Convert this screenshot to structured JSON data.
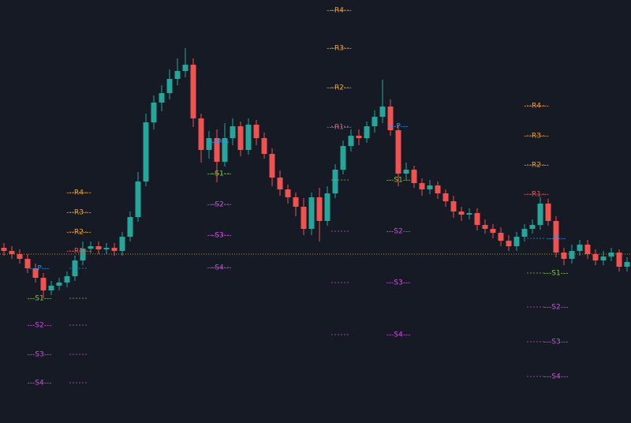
{
  "chart_data": {
    "type": "candlestick",
    "ylim": [
      0,
      536
    ],
    "up_color": "#26a69a",
    "down_color": "#ef5350",
    "price_line": 214,
    "price_line_color": "#f7a21b",
    "open": [
      222,
      218,
      214,
      208,
      196,
      184,
      168,
      174,
      178,
      186,
      206,
      221,
      224,
      220,
      222,
      218,
      236,
      261,
      306,
      381,
      406,
      418,
      436,
      446,
      454,
      386,
      346,
      361,
      331,
      361,
      376,
      346,
      378,
      361,
      341,
      311,
      296,
      286,
      274,
      246,
      286,
      256,
      291,
      321,
      351,
      364,
      361,
      376,
      388,
      401,
      371,
      316,
      321,
      304,
      296,
      301,
      291,
      281,
      268,
      264,
      266,
      251,
      246,
      241,
      231,
      224,
      236,
      246,
      251,
      278,
      256,
      216,
      208,
      218,
      226,
      214,
      206,
      211,
      216,
      198
    ],
    "high": [
      228,
      224,
      220,
      214,
      202,
      190,
      180,
      184,
      192,
      212,
      230,
      230,
      230,
      228,
      228,
      242,
      268,
      318,
      392,
      415,
      428,
      448,
      462,
      475,
      462,
      392,
      370,
      372,
      380,
      386,
      382,
      386,
      384,
      368,
      348,
      320,
      302,
      292,
      285,
      292,
      298,
      300,
      328,
      358,
      372,
      372,
      382,
      396,
      435,
      410,
      378,
      330,
      326,
      310,
      308,
      306,
      296,
      288,
      274,
      272,
      272,
      258,
      252,
      248,
      238,
      242,
      252,
      258,
      286,
      284,
      262,
      222,
      226,
      232,
      232,
      220,
      218,
      222,
      220,
      210
    ],
    "low": [
      212,
      208,
      202,
      190,
      178,
      158,
      162,
      168,
      172,
      180,
      200,
      215,
      214,
      214,
      212,
      212,
      230,
      255,
      300,
      372,
      395,
      410,
      428,
      438,
      375,
      330,
      335,
      305,
      325,
      352,
      338,
      340,
      352,
      335,
      300,
      288,
      278,
      262,
      238,
      238,
      230,
      250,
      285,
      315,
      344,
      352,
      355,
      368,
      380,
      364,
      300,
      308,
      298,
      288,
      290,
      284,
      274,
      260,
      256,
      258,
      244,
      240,
      234,
      224,
      218,
      218,
      230,
      240,
      245,
      250,
      210,
      200,
      202,
      212,
      208,
      200,
      200,
      205,
      192,
      192
    ],
    "close": [
      218,
      214,
      208,
      196,
      184,
      168,
      174,
      178,
      186,
      206,
      221,
      224,
      220,
      222,
      218,
      236,
      261,
      306,
      381,
      406,
      418,
      436,
      446,
      454,
      386,
      346,
      361,
      331,
      361,
      376,
      346,
      378,
      361,
      341,
      311,
      296,
      286,
      274,
      246,
      286,
      256,
      291,
      321,
      351,
      364,
      361,
      376,
      388,
      401,
      371,
      316,
      321,
      304,
      296,
      301,
      291,
      281,
      268,
      264,
      266,
      251,
      246,
      241,
      231,
      224,
      236,
      246,
      251,
      278,
      256,
      216,
      208,
      218,
      226,
      214,
      206,
      211,
      216,
      198,
      204
    ],
    "pivots": [
      {
        "resistance": [
          {
            "label": "---R4---",
            "value": 292,
            "color": "#f7a21b"
          },
          {
            "label": "---R3---",
            "value": 267,
            "color": "#f7a21b"
          },
          {
            "label": "---R2---",
            "value": 242,
            "color": "#f7a21b"
          },
          {
            "label": "---R1---",
            "value": 218,
            "color": "#ef5350"
          }
        ],
        "pivot_support": [
          {
            "label": "---P---",
            "value": 196,
            "color": "#2196f3"
          },
          {
            "label": "---S1---",
            "value": 158,
            "color": "#8bc34a"
          },
          {
            "label": "---S2---",
            "value": 124,
            "color": "#d54ce8"
          },
          {
            "label": "---S3---",
            "value": 87,
            "color": "#d54ce8"
          },
          {
            "label": "---S4---",
            "value": 51,
            "color": "#d54ce8"
          }
        ]
      },
      {
        "resistance": [],
        "pivot_support": [
          {
            "label": "---P---",
            "value": 356,
            "color": "#2196f3"
          },
          {
            "label": "---S1---",
            "value": 316,
            "color": "#8bc34a"
          },
          {
            "label": "---S2---",
            "value": 277,
            "color": "#d54ce8"
          },
          {
            "label": "---S3---",
            "value": 238,
            "color": "#d54ce8"
          },
          {
            "label": "---S4---",
            "value": 197,
            "color": "#d54ce8"
          }
        ]
      },
      {
        "resistance": [
          {
            "label": "---R4---",
            "value": 523,
            "color": "#f7a21b"
          },
          {
            "label": "---R3---",
            "value": 475,
            "color": "#f7a21b"
          },
          {
            "label": "---R2---",
            "value": 425,
            "color": "#f7a21b"
          },
          {
            "label": "---R1---",
            "value": 375,
            "color": "#ef5350"
          }
        ],
        "pivot_support": [
          {
            "label": "---P---",
            "value": 376,
            "color": "#2196f3"
          },
          {
            "label": "---S1---",
            "value": 308,
            "color": "#8bc34a"
          },
          {
            "label": "---S2---",
            "value": 243,
            "color": "#d54ce8"
          },
          {
            "label": "---S3---",
            "value": 178,
            "color": "#d54ce8"
          },
          {
            "label": "---S4---",
            "value": 112,
            "color": "#d54ce8"
          }
        ]
      },
      {
        "resistance": [
          {
            "label": "---R4---",
            "value": 402,
            "color": "#f7a21b"
          },
          {
            "label": "---R3---",
            "value": 364,
            "color": "#f7a21b"
          },
          {
            "label": "---R2---",
            "value": 327,
            "color": "#f7a21b"
          },
          {
            "label": "---R1---",
            "value": 290,
            "color": "#ef5350"
          }
        ],
        "pivot_support": [
          {
            "label": "---P---",
            "value": 234,
            "color": "#2196f3"
          },
          {
            "label": "---S1---",
            "value": 190,
            "color": "#8bc34a"
          },
          {
            "label": "---S2---",
            "value": 147,
            "color": "#d54ce8"
          },
          {
            "label": "---S3---",
            "value": 103,
            "color": "#d54ce8"
          },
          {
            "label": "---S4---",
            "value": 59,
            "color": "#d54ce8"
          }
        ]
      }
    ]
  }
}
